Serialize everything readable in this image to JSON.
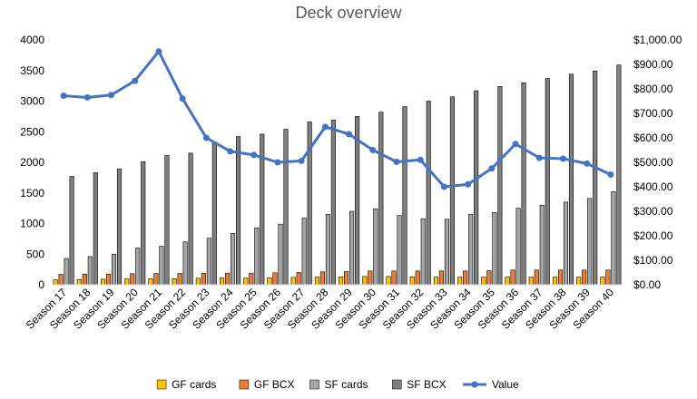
{
  "chart_data": {
    "type": "bar",
    "title": "Deck overview",
    "categories": [
      "Season 17",
      "Season 18",
      "Season 19",
      "Season 20",
      "Season 21",
      "Season 22",
      "Season 23",
      "Season 24",
      "Season 25",
      "Season 26",
      "Season 27",
      "Season 28",
      "Season 29",
      "Season 30",
      "Season 31",
      "Season 32",
      "Season 33",
      "Season 34",
      "Season 35",
      "Season 36",
      "Season 37",
      "Season 38",
      "Season 39",
      "Season 40"
    ],
    "series": [
      {
        "name": "GF cards",
        "type": "bar",
        "axis": "left",
        "color": "#FFC000",
        "values": [
          80,
          85,
          90,
          95,
          100,
          100,
          105,
          110,
          110,
          115,
          120,
          125,
          130,
          135,
          135,
          130,
          125,
          125,
          125,
          125,
          125,
          125,
          125,
          125
        ]
      },
      {
        "name": "GF BCX",
        "type": "bar",
        "axis": "left",
        "color": "#ED7D31",
        "values": [
          170,
          175,
          175,
          180,
          185,
          185,
          190,
          190,
          190,
          195,
          200,
          210,
          215,
          225,
          225,
          225,
          225,
          225,
          230,
          240,
          240,
          240,
          240,
          240
        ]
      },
      {
        "name": "SF cards",
        "type": "bar",
        "axis": "left",
        "color": "#A5A5A5",
        "values": [
          430,
          460,
          500,
          600,
          630,
          700,
          760,
          840,
          930,
          990,
          1090,
          1150,
          1200,
          1240,
          1130,
          1080,
          1070,
          1150,
          1180,
          1250,
          1300,
          1350,
          1410,
          1520
        ]
      },
      {
        "name": "SF BCX",
        "type": "bar",
        "axis": "left",
        "color": "#7F7F7F",
        "values": [
          1770,
          1830,
          1890,
          2010,
          2110,
          2150,
          2330,
          2420,
          2460,
          2540,
          2660,
          2690,
          2750,
          2820,
          2910,
          3000,
          3070,
          3170,
          3240,
          3300,
          3370,
          3440,
          3490,
          3590
        ]
      },
      {
        "name": "Value",
        "type": "line",
        "axis": "right",
        "color": "#4472C4",
        "values": [
          772,
          765,
          775,
          833,
          953,
          760,
          600,
          545,
          530,
          500,
          506,
          645,
          615,
          550,
          502,
          510,
          400,
          410,
          475,
          575,
          518,
          515,
          495,
          450
        ]
      }
    ],
    "yleft": {
      "min": 0,
      "max": 4000,
      "step": 500,
      "ticks": [
        "0",
        "500",
        "1000",
        "1500",
        "2000",
        "2500",
        "3000",
        "3500",
        "4000"
      ]
    },
    "yright": {
      "min": 0,
      "max": 1000,
      "step": 100,
      "ticks": [
        "$0.00",
        "$100.00",
        "$200.00",
        "$300.00",
        "$400.00",
        "$500.00",
        "$600.00",
        "$700.00",
        "$800.00",
        "$900.00",
        "$1,000.00"
      ]
    },
    "grid": false,
    "legend_position": "bottom"
  }
}
